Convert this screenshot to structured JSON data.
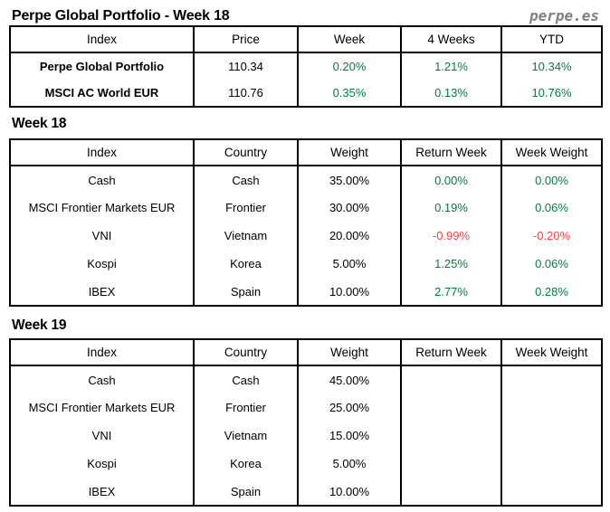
{
  "header": {
    "title": "Perpe Global Portfolio - Week 18",
    "logo": "perpe.es"
  },
  "colors": {
    "positive": "#008040",
    "negative": "#ff4040",
    "logo_gray": "#808080",
    "border": "#000000"
  },
  "summary_table": {
    "columns": [
      "Index",
      "Price",
      "Week",
      "4 Weeks",
      "YTD"
    ],
    "rows": [
      {
        "cells": [
          "Perpe Global Portfolio",
          "110.34",
          "0.20%",
          "1.21%",
          "10.34%"
        ],
        "tones": [
          "bold",
          "",
          "positive",
          "positive",
          "positive"
        ]
      },
      {
        "cells": [
          "MSCI AC World EUR",
          "110.76",
          "0.35%",
          "0.13%",
          "10.76%"
        ],
        "tones": [
          "bold",
          "",
          "positive",
          "positive",
          "positive"
        ]
      }
    ]
  },
  "sections": [
    {
      "heading": "Week 18",
      "table": {
        "columns": [
          "Index",
          "Country",
          "Weight",
          "Return Week",
          "Week Weight"
        ],
        "rows": [
          {
            "cells": [
              "Cash",
              "Cash",
              "35.00%",
              "0.00%",
              "0.00%"
            ],
            "tones": [
              "",
              "",
              "",
              "positive",
              "positive"
            ]
          },
          {
            "cells": [
              "MSCI Frontier Markets EUR",
              "Frontier",
              "30.00%",
              "0.19%",
              "0.06%"
            ],
            "tones": [
              "",
              "",
              "",
              "positive",
              "positive"
            ]
          },
          {
            "cells": [
              "VNI",
              "Vietnam",
              "20.00%",
              "-0.99%",
              "-0.20%"
            ],
            "tones": [
              "",
              "",
              "",
              "negative",
              "negative"
            ]
          },
          {
            "cells": [
              "Kospi",
              "Korea",
              "5.00%",
              "1.25%",
              "0.06%"
            ],
            "tones": [
              "",
              "",
              "",
              "positive",
              "positive"
            ]
          },
          {
            "cells": [
              "IBEX",
              "Spain",
              "10.00%",
              "2.77%",
              "0.28%"
            ],
            "tones": [
              "",
              "",
              "",
              "positive",
              "positive"
            ]
          }
        ]
      }
    },
    {
      "heading": "Week 19",
      "table": {
        "columns": [
          "Index",
          "Country",
          "Weight",
          "Return Week",
          "Week Weight"
        ],
        "rows": [
          {
            "cells": [
              "Cash",
              "Cash",
              "45.00%",
              "",
              ""
            ],
            "tones": [
              "",
              "",
              "",
              "",
              ""
            ]
          },
          {
            "cells": [
              "MSCI Frontier Markets EUR",
              "Frontier",
              "25.00%",
              "",
              ""
            ],
            "tones": [
              "",
              "",
              "",
              "",
              ""
            ]
          },
          {
            "cells": [
              "VNI",
              "Vietnam",
              "15.00%",
              "",
              ""
            ],
            "tones": [
              "",
              "",
              "",
              "",
              ""
            ]
          },
          {
            "cells": [
              "Kospi",
              "Korea",
              "5.00%",
              "",
              ""
            ],
            "tones": [
              "",
              "",
              "",
              "",
              ""
            ]
          },
          {
            "cells": [
              "IBEX",
              "Spain",
              "10.00%",
              "",
              ""
            ],
            "tones": [
              "",
              "",
              "",
              "",
              ""
            ]
          }
        ]
      }
    }
  ]
}
